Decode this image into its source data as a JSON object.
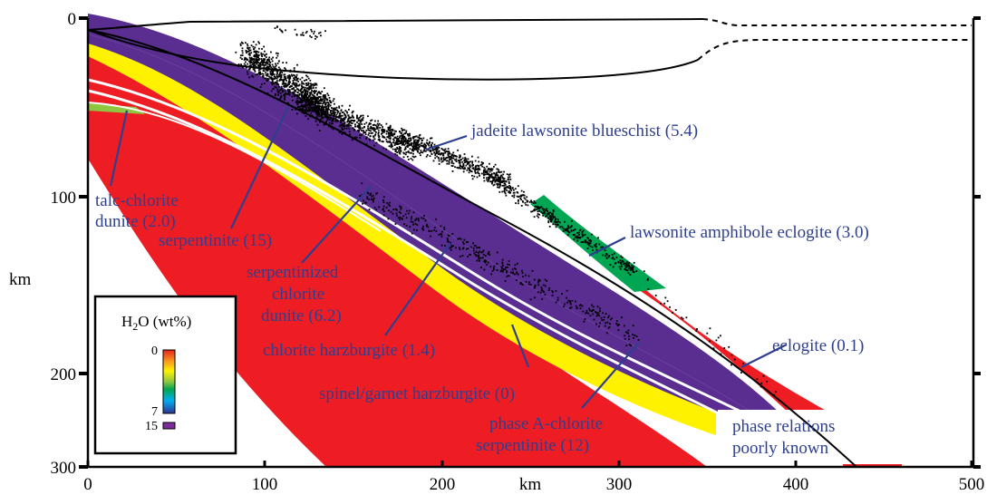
{
  "axes": {
    "x_unit": "km",
    "y_unit": "km",
    "x_ticks": [
      "0",
      "100",
      "200",
      "300",
      "400",
      "500"
    ],
    "y_ticks": [
      "0",
      "100",
      "200",
      "300"
    ]
  },
  "legend": {
    "title_main": "H",
    "title_sub": "2",
    "title_rest": "O (wt%)",
    "scale_labels": [
      "0",
      "7",
      "15"
    ],
    "colors": [
      "#e8231d",
      "#f7941d",
      "#fff200",
      "#8dc63f",
      "#00a651",
      "#00aeef",
      "#2e3192",
      "#7b2c9b"
    ]
  },
  "labels": {
    "jadeite": "jadeite lawsonite blueschist (5.4)",
    "talc_line1": "talc-chlorite",
    "talc_line2": "dunite (2.0)",
    "serpentinite": "serpentinite (15)",
    "lawsonite": "lawsonite amphibole eclogite (3.0)",
    "serpchl_line1": "serpentinized",
    "serpchl_line2": "chlorite",
    "serpchl_line3": "dunite (6.2)",
    "eclogite": "eclogite (0.1)",
    "chlharz": "chlorite harzburgite (1.4)",
    "spinel": "spinel/garnet harzburgite (0)",
    "phaseA_line1": "phase A-chlorite",
    "phaseA_line2": "serpentinite (12)",
    "phaserel_line1": "phase relations",
    "phaserel_line2": "poorly known"
  },
  "layer_colors": {
    "spinel_harzburgite": "#ee1d23",
    "phaseA_serpentinite": "#fff200",
    "chlorite_harzburgite": "#5a2d91",
    "serpentinite": "#5a2d91",
    "talc_chlorite_dunite": "#8dc63f",
    "lawsonite_amphibole_eclogite": "#00a651",
    "eclogite": "#ee1d23"
  }
}
